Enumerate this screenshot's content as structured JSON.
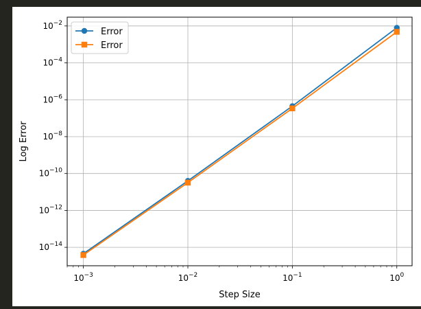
{
  "chart_data": {
    "type": "line",
    "title": "",
    "xlabel": "Step Size",
    "ylabel": "Log Error",
    "x_scale": "log",
    "y_scale": "log",
    "xlim": [
      0.0007,
      1.4
    ],
    "ylim": [
      1e-15,
      0.03
    ],
    "x": [
      0.001,
      0.01,
      0.1,
      1
    ],
    "x_ticks": [
      {
        "base": "10",
        "exp": "−3",
        "value": 0.001
      },
      {
        "base": "10",
        "exp": "−2",
        "value": 0.01
      },
      {
        "base": "10",
        "exp": "−1",
        "value": 0.1
      },
      {
        "base": "10",
        "exp": "0",
        "value": 1
      }
    ],
    "y_ticks": [
      {
        "base": "10",
        "exp": "−14",
        "value": 1e-14
      },
      {
        "base": "10",
        "exp": "−12",
        "value": 1e-12
      },
      {
        "base": "10",
        "exp": "−10",
        "value": 1e-10
      },
      {
        "base": "10",
        "exp": "−8",
        "value": 1e-08
      },
      {
        "base": "10",
        "exp": "−6",
        "value": 1e-06
      },
      {
        "base": "10",
        "exp": "−4",
        "value": 0.0001
      },
      {
        "base": "10",
        "exp": "−2",
        "value": 0.01
      }
    ],
    "series": [
      {
        "name": "Error",
        "marker": "circle",
        "color": "#1f77b4",
        "values": [
          4.5e-15,
          4e-11,
          4.5e-07,
          0.008
        ]
      },
      {
        "name": "Error",
        "marker": "square",
        "color": "#ff7f0e",
        "values": [
          3.8e-15,
          3.2e-11,
          3.4e-07,
          0.0048
        ]
      }
    ],
    "grid": true,
    "legend_position": "top-left"
  }
}
